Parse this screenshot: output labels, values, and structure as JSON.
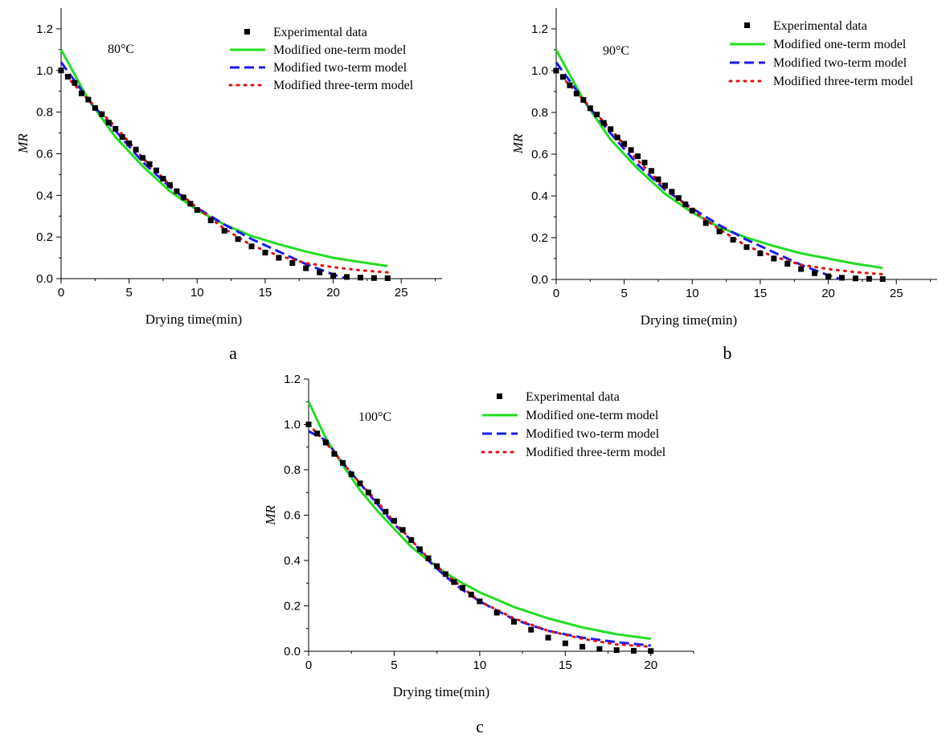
{
  "figure": {
    "legend_labels": [
      "Experimental data",
      "Modified one-term model",
      "Modified two-term model",
      "Modified three-term model"
    ],
    "colors": {
      "experimental": "#000000",
      "one_term": "#22dd22",
      "two_term": "#1a1aee",
      "three_term": "#dd1111"
    }
  },
  "chart_data": [
    {
      "panel": "a",
      "type": "scatter+line",
      "title": "80°C",
      "xlabel": "Drying time(min)",
      "ylabel": "MR",
      "xlim": [
        0,
        28
      ],
      "ylim": [
        0,
        1.3
      ],
      "xticks": [
        0,
        5,
        10,
        15,
        20,
        25
      ],
      "yticks": [
        0.0,
        0.2,
        0.4,
        0.6,
        0.8,
        1.0,
        1.2
      ],
      "legend_position": "top-right",
      "experimental": {
        "x": [
          0,
          0.5,
          1,
          1.5,
          2,
          2.5,
          3,
          3.5,
          4,
          4.5,
          5,
          5.5,
          6,
          6.5,
          7,
          7.5,
          8,
          8.5,
          9,
          9.5,
          10,
          11,
          12,
          13,
          14,
          15,
          16,
          17,
          18,
          19,
          20,
          21,
          22,
          23,
          24
        ],
        "y": [
          1.0,
          0.97,
          0.94,
          0.89,
          0.86,
          0.82,
          0.79,
          0.75,
          0.72,
          0.68,
          0.65,
          0.62,
          0.58,
          0.55,
          0.52,
          0.48,
          0.45,
          0.42,
          0.39,
          0.36,
          0.33,
          0.28,
          0.23,
          0.19,
          0.155,
          0.125,
          0.1,
          0.075,
          0.05,
          0.03,
          0.015,
          0.008,
          0.005,
          0.003,
          0.002
        ]
      },
      "series": [
        {
          "name": "Modified one-term model",
          "x": [
            0,
            2,
            4,
            6,
            8,
            10,
            12,
            14,
            16,
            18,
            20,
            22,
            24
          ],
          "y": [
            1.1,
            0.86,
            0.68,
            0.54,
            0.42,
            0.33,
            0.26,
            0.205,
            0.165,
            0.13,
            0.1,
            0.08,
            0.06
          ]
        },
        {
          "name": "Modified two-term model",
          "x": [
            0,
            2,
            4,
            6,
            8,
            10,
            12,
            14,
            16,
            18,
            20,
            21
          ],
          "y": [
            1.04,
            0.86,
            0.71,
            0.56,
            0.44,
            0.34,
            0.26,
            0.19,
            0.13,
            0.07,
            0.02,
            0.0
          ]
        },
        {
          "name": "Modified three-term model",
          "x": [
            0,
            2,
            4,
            6,
            8,
            10,
            12,
            14,
            16,
            18,
            20,
            22,
            24
          ],
          "y": [
            1.0,
            0.86,
            0.73,
            0.58,
            0.45,
            0.34,
            0.24,
            0.16,
            0.11,
            0.075,
            0.055,
            0.04,
            0.03
          ]
        }
      ]
    },
    {
      "panel": "b",
      "type": "scatter+line",
      "title": "90°C",
      "xlabel": "Drying time(min)",
      "ylabel": "MR",
      "xlim": [
        0,
        28
      ],
      "ylim": [
        0,
        1.3
      ],
      "xticks": [
        0,
        5,
        10,
        15,
        20,
        25
      ],
      "yticks": [
        0.0,
        0.2,
        0.4,
        0.6,
        0.8,
        1.0,
        1.2
      ],
      "legend_position": "top-right",
      "experimental": {
        "x": [
          0,
          0.5,
          1,
          1.5,
          2,
          2.5,
          3,
          3.5,
          4,
          4.5,
          5,
          5.5,
          6,
          6.5,
          7,
          7.5,
          8,
          8.5,
          9,
          9.5,
          10,
          11,
          12,
          13,
          14,
          15,
          16,
          17,
          18,
          19,
          20,
          21,
          22,
          23,
          24
        ],
        "y": [
          1.0,
          0.97,
          0.93,
          0.89,
          0.86,
          0.82,
          0.79,
          0.75,
          0.72,
          0.68,
          0.65,
          0.62,
          0.59,
          0.56,
          0.52,
          0.48,
          0.45,
          0.42,
          0.39,
          0.36,
          0.33,
          0.27,
          0.23,
          0.19,
          0.155,
          0.125,
          0.1,
          0.075,
          0.05,
          0.03,
          0.015,
          0.008,
          0.005,
          0.003,
          0.002
        ]
      },
      "series": [
        {
          "name": "Modified one-term model",
          "x": [
            0,
            2,
            4,
            6,
            8,
            10,
            12,
            14,
            16,
            18,
            20,
            22,
            24
          ],
          "y": [
            1.1,
            0.86,
            0.67,
            0.53,
            0.41,
            0.32,
            0.25,
            0.2,
            0.16,
            0.125,
            0.1,
            0.075,
            0.055
          ]
        },
        {
          "name": "Modified two-term model",
          "x": [
            0,
            2,
            4,
            6,
            8,
            10,
            12,
            14,
            16,
            18,
            20,
            21
          ],
          "y": [
            1.04,
            0.86,
            0.7,
            0.55,
            0.43,
            0.34,
            0.26,
            0.19,
            0.13,
            0.07,
            0.02,
            0.0
          ]
        },
        {
          "name": "Modified three-term model",
          "x": [
            0,
            2,
            4,
            6,
            8,
            10,
            12,
            14,
            16,
            18,
            20,
            22,
            24
          ],
          "y": [
            1.0,
            0.86,
            0.72,
            0.57,
            0.44,
            0.33,
            0.24,
            0.16,
            0.11,
            0.07,
            0.05,
            0.035,
            0.025
          ]
        }
      ]
    },
    {
      "panel": "c",
      "type": "scatter+line",
      "title": "100°C",
      "xlabel": "Drying time(min)",
      "ylabel": "MR",
      "xlim": [
        0,
        22.5
      ],
      "ylim": [
        0,
        1.2
      ],
      "xticks": [
        0,
        5,
        10,
        15,
        20
      ],
      "yticks": [
        0.0,
        0.2,
        0.4,
        0.6,
        0.8,
        1.0,
        1.2
      ],
      "legend_position": "top-right",
      "experimental": {
        "x": [
          0,
          0.5,
          1,
          1.5,
          2,
          2.5,
          3,
          3.5,
          4,
          4.5,
          5,
          5.5,
          6,
          6.5,
          7,
          7.5,
          8,
          8.5,
          9,
          9.5,
          10,
          11,
          12,
          13,
          14,
          15,
          16,
          17,
          18,
          19,
          20
        ],
        "y": [
          1.0,
          0.96,
          0.92,
          0.87,
          0.83,
          0.78,
          0.74,
          0.7,
          0.66,
          0.615,
          0.575,
          0.535,
          0.49,
          0.45,
          0.41,
          0.375,
          0.34,
          0.305,
          0.28,
          0.25,
          0.22,
          0.17,
          0.13,
          0.095,
          0.06,
          0.035,
          0.02,
          0.01,
          0.005,
          0.002,
          0.001
        ]
      },
      "series": [
        {
          "name": "Modified one-term model",
          "x": [
            0,
            1,
            2,
            3,
            4,
            5,
            6,
            7,
            8,
            9,
            10,
            12,
            14,
            16,
            18,
            20
          ],
          "y": [
            1.1,
            0.94,
            0.82,
            0.71,
            0.62,
            0.54,
            0.46,
            0.4,
            0.345,
            0.3,
            0.26,
            0.195,
            0.145,
            0.105,
            0.075,
            0.055
          ]
        },
        {
          "name": "Modified two-term model",
          "x": [
            0,
            1,
            2,
            3,
            4,
            5,
            6,
            7,
            8,
            9,
            10,
            12,
            14,
            16,
            18,
            20
          ],
          "y": [
            0.97,
            0.93,
            0.83,
            0.74,
            0.65,
            0.56,
            0.49,
            0.4,
            0.33,
            0.27,
            0.22,
            0.14,
            0.09,
            0.06,
            0.04,
            0.025
          ]
        },
        {
          "name": "Modified three-term model",
          "x": [
            0,
            1,
            2,
            3,
            4,
            5,
            6,
            7,
            8,
            9,
            10,
            12,
            14,
            16,
            18,
            20
          ],
          "y": [
            1.0,
            0.92,
            0.83,
            0.74,
            0.66,
            0.57,
            0.49,
            0.41,
            0.34,
            0.28,
            0.22,
            0.145,
            0.09,
            0.055,
            0.03,
            0.02
          ]
        }
      ]
    }
  ]
}
